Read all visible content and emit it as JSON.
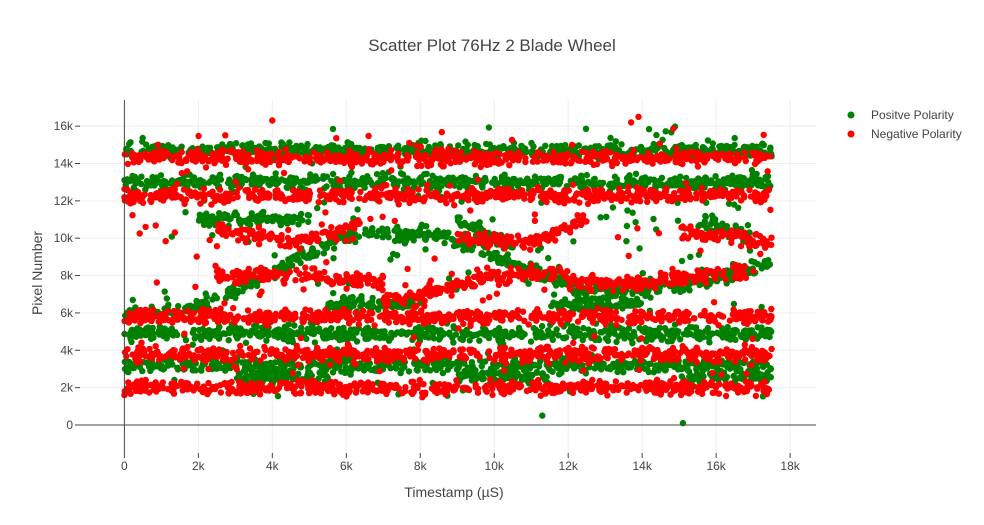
{
  "chart_data": {
    "type": "scatter",
    "title": "Scatter Plot 76Hz 2 Blade Wheel",
    "xlabel": "Timestamp (µS)",
    "ylabel": "Pixel Number",
    "xlim": [
      -1200,
      18700
    ],
    "ylim": [
      -1500,
      17400
    ],
    "x_ticks": [
      0,
      2000,
      4000,
      6000,
      8000,
      10000,
      12000,
      14000,
      16000,
      18000
    ],
    "x_tick_labels": [
      "0",
      "2k",
      "4k",
      "6k",
      "8k",
      "10k",
      "12k",
      "14k",
      "16k",
      "18k"
    ],
    "y_ticks": [
      0,
      2000,
      4000,
      6000,
      8000,
      10000,
      12000,
      14000,
      16000
    ],
    "y_tick_labels": [
      "0",
      "2k",
      "4k",
      "6k",
      "8k",
      "10k",
      "12k",
      "14k",
      "16k"
    ],
    "grid": true,
    "legend": "top-right",
    "series": [
      {
        "name": "Positve Polarity",
        "color": "#008000",
        "bands": [
          {
            "x": [
              0,
              17500
            ],
            "y": [
              13000,
              13000
            ]
          },
          {
            "x": [
              0,
              17500
            ],
            "y": [
              14700,
              14700
            ]
          },
          {
            "x": [
              0,
              17500
            ],
            "y": [
              4900,
              4900
            ]
          },
          {
            "x": [
              0,
              17500
            ],
            "y": [
              3200,
              3200
            ]
          },
          {
            "x": [
              0,
              1500
            ],
            "y": [
              6000,
              6000
            ]
          },
          {
            "x": [
              1500,
              3000
            ],
            "y": [
              6000,
              7200
            ]
          },
          {
            "x": [
              3000,
              4500
            ],
            "y": [
              7200,
              8700
            ]
          },
          {
            "x": [
              4500,
              6000
            ],
            "y": [
              8700,
              10200
            ]
          },
          {
            "x": [
              6000,
              8500
            ],
            "y": [
              10200,
              10200
            ]
          },
          {
            "x": [
              8500,
              10500
            ],
            "y": [
              10200,
              8700
            ]
          },
          {
            "x": [
              10500,
              12500
            ],
            "y": [
              8700,
              7200
            ]
          },
          {
            "x": [
              12500,
              14500
            ],
            "y": [
              7200,
              7200
            ]
          },
          {
            "x": [
              14500,
              17500
            ],
            "y": [
              7200,
              8700
            ]
          },
          {
            "x": [
              2000,
              5000
            ],
            "y": [
              11000,
              11000
            ]
          },
          {
            "x": [
              9000,
              10500
            ],
            "y": [
              11000,
              9500
            ]
          },
          {
            "x": [
              15500,
              17000
            ],
            "y": [
              11000,
              10000
            ]
          },
          {
            "x": [
              3000,
              5500
            ],
            "y": [
              2600,
              2600
            ]
          },
          {
            "x": [
              9000,
              11500
            ],
            "y": [
              2600,
              2600
            ]
          },
          {
            "x": [
              15000,
              17500
            ],
            "y": [
              2600,
              2600
            ]
          },
          {
            "x": [
              5500,
              8000
            ],
            "y": [
              6500,
              6500
            ]
          },
          {
            "x": [
              11500,
              14000
            ],
            "y": [
              6500,
              6500
            ]
          }
        ],
        "scatter_clouds": [
          {
            "x": [
              0,
              17500
            ],
            "y": [
              1500,
              16000
            ],
            "weight": 0.25
          }
        ],
        "outliers": [
          {
            "x": 11300,
            "y": 500
          },
          {
            "x": 15100,
            "y": 100
          }
        ]
      },
      {
        "name": "Negative Polarity",
        "color": "#ff0000",
        "bands": [
          {
            "x": [
              0,
              17500
            ],
            "y": [
              14300,
              14300
            ]
          },
          {
            "x": [
              0,
              17500
            ],
            "y": [
              12300,
              12300
            ]
          },
          {
            "x": [
              0,
              17500
            ],
            "y": [
              5800,
              5800
            ]
          },
          {
            "x": [
              0,
              17500
            ],
            "y": [
              3800,
              3800
            ]
          },
          {
            "x": [
              0,
              17500
            ],
            "y": [
              2000,
              2000
            ]
          },
          {
            "x": [
              2500,
              5000
            ],
            "y": [
              8000,
              8000
            ]
          },
          {
            "x": [
              5000,
              7000
            ],
            "y": [
              8000,
              7600
            ]
          },
          {
            "x": [
              7000,
              9500
            ],
            "y": [
              6600,
              7600
            ]
          },
          {
            "x": [
              9500,
              12000
            ],
            "y": [
              8000,
              8000
            ]
          },
          {
            "x": [
              12000,
              14500
            ],
            "y": [
              7600,
              7600
            ]
          },
          {
            "x": [
              14500,
              17000
            ],
            "y": [
              7800,
              8200
            ]
          },
          {
            "x": [
              2500,
              4500
            ],
            "y": [
              10500,
              9800
            ]
          },
          {
            "x": [
              4500,
              6500
            ],
            "y": [
              9800,
              10800
            ]
          },
          {
            "x": [
              9000,
              11000
            ],
            "y": [
              10000,
              9800
            ]
          },
          {
            "x": [
              11000,
              12500
            ],
            "y": [
              9800,
              11000
            ]
          },
          {
            "x": [
              15000,
              17500
            ],
            "y": [
              10400,
              9800
            ]
          }
        ],
        "scatter_clouds": [
          {
            "x": [
              0,
              17500
            ],
            "y": [
              1500,
              16000
            ],
            "weight": 0.2
          }
        ],
        "outliers": [
          {
            "x": 4000,
            "y": 16300
          },
          {
            "x": 13900,
            "y": 16500
          },
          {
            "x": 13700,
            "y": 16200
          },
          {
            "x": 0,
            "y": 1600
          }
        ]
      }
    ]
  }
}
